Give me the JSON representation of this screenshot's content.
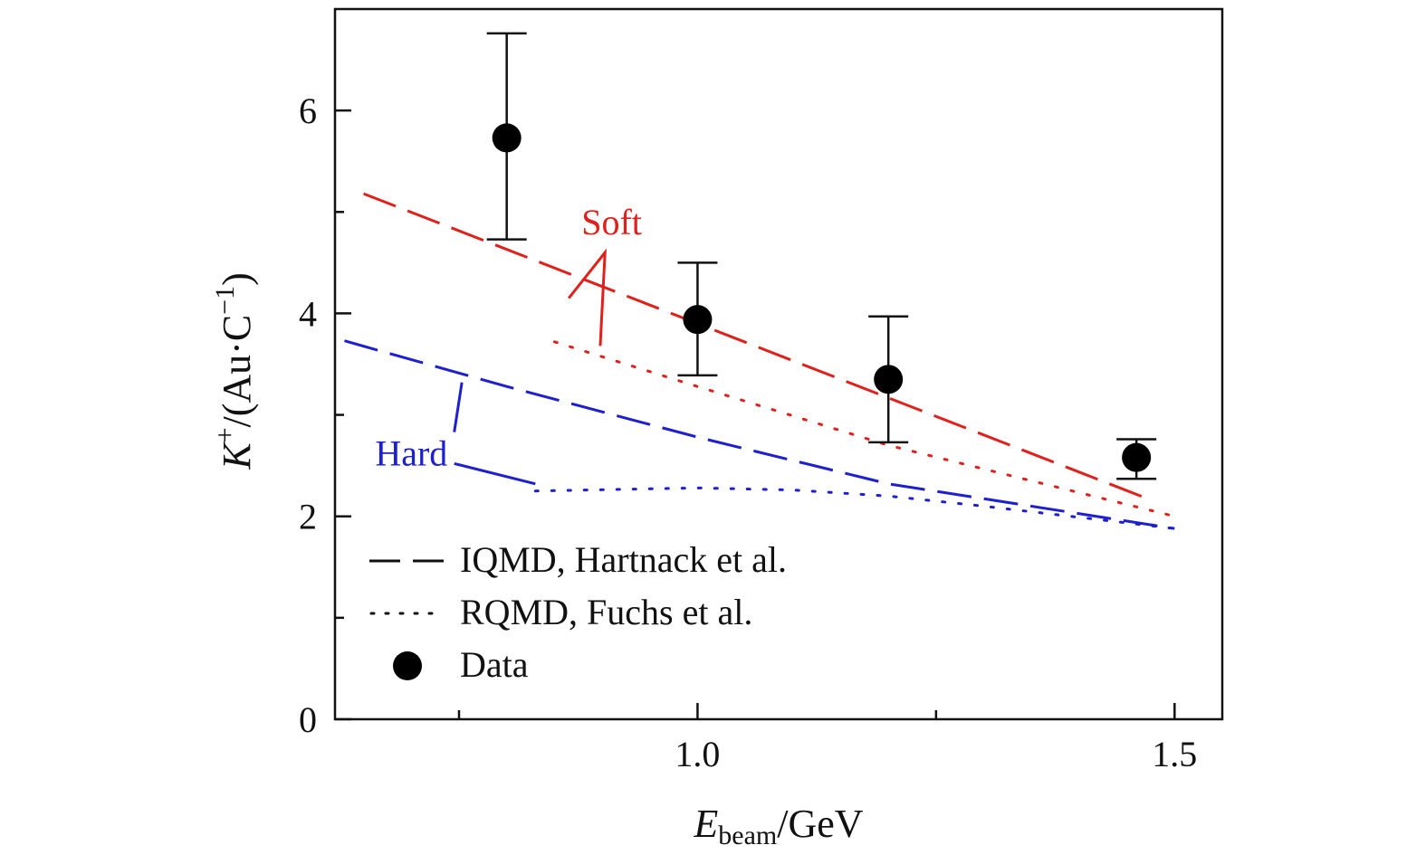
{
  "chart_data": {
    "type": "line",
    "xlabel_main": "E",
    "xlabel_sub": "beam",
    "xlabel_unit": "/GeV",
    "ylabel_main": "K",
    "ylabel_sup": "+",
    "ylabel_rest": "/(Au·C",
    "ylabel_sup2": "−1",
    "ylabel_close": ")",
    "xlim": [
      0.62,
      1.55
    ],
    "ylim": [
      0,
      7.0
    ],
    "x_ticks": [
      {
        "v": 1.0,
        "label": "1.0"
      },
      {
        "v": 1.5,
        "label": "1.5"
      }
    ],
    "x_minor_ticks": [
      0.75,
      1.25
    ],
    "y_ticks": [
      {
        "v": 0,
        "label": "0"
      },
      {
        "v": 2,
        "label": "2"
      },
      {
        "v": 4,
        "label": "4"
      },
      {
        "v": 6,
        "label": "6"
      }
    ],
    "y_minor_ticks": [
      1,
      3,
      5
    ],
    "grid": false,
    "legend_position": "bottom-left",
    "legend": [
      {
        "style": "dashed",
        "label": "IQMD, Hartnack et al."
      },
      {
        "style": "dotted",
        "label": "RQMD, Fuchs et al."
      },
      {
        "style": "marker",
        "label": "Data"
      }
    ],
    "annotations": [
      {
        "text": "Soft",
        "color": "#e0201b"
      },
      {
        "text": "Hard",
        "color": "#1d1fd0"
      }
    ],
    "data_series": {
      "x": [
        0.8,
        1.0,
        1.2,
        1.46
      ],
      "y": [
        5.73,
        3.94,
        3.35,
        2.58
      ],
      "err_low": [
        1.0,
        0.55,
        0.62,
        0.21
      ],
      "err_high": [
        1.03,
        0.56,
        0.62,
        0.18
      ]
    },
    "series": [
      {
        "group": "Soft",
        "style": "dashed",
        "color": "#e0201b",
        "x": [
          0.65,
          1.47
        ],
        "y": [
          5.18,
          2.18
        ]
      },
      {
        "group": "Soft",
        "style": "dotted",
        "color": "#e0201b",
        "x": [
          0.85,
          1.0,
          1.2,
          1.5
        ],
        "y": [
          3.72,
          3.28,
          2.7,
          2.0
        ]
      },
      {
        "group": "Hard",
        "style": "dashed",
        "color": "#1d1fd0",
        "x": [
          0.63,
          0.8,
          1.0,
          1.2,
          1.5
        ],
        "y": [
          3.73,
          3.28,
          2.78,
          2.32,
          1.88
        ]
      },
      {
        "group": "Hard",
        "style": "dotted",
        "color": "#1d1fd0",
        "x": [
          0.83,
          1.0,
          1.1,
          1.2,
          1.3,
          1.4,
          1.5
        ],
        "y": [
          2.25,
          2.28,
          2.26,
          2.2,
          2.1,
          1.99,
          1.88
        ]
      }
    ]
  }
}
